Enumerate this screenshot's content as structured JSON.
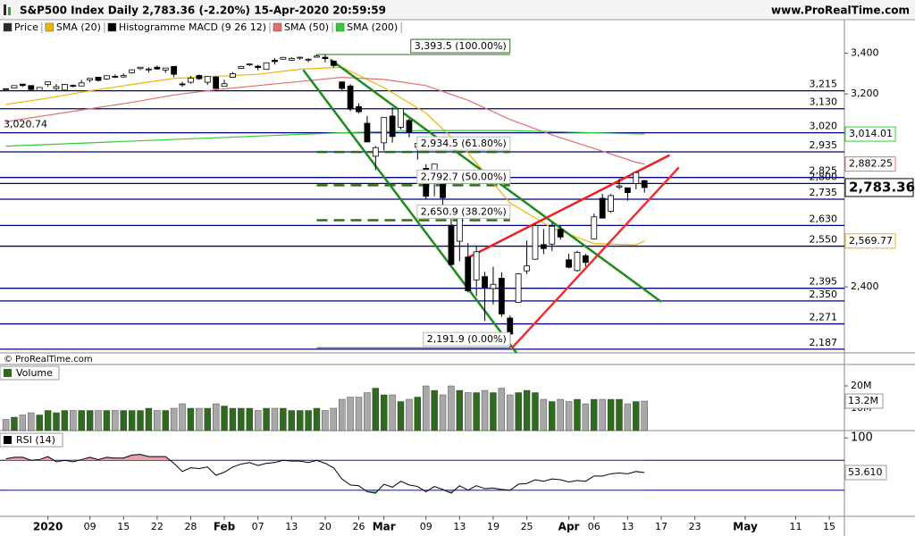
{
  "header": {
    "title": "S&P500 Index Daily 2,783.36 (-2.20%) 15-Apr-2020 20:59:59",
    "site": "www.ProRealTime.com"
  },
  "legend": [
    {
      "name": "Price",
      "color": "#2b2b2b"
    },
    {
      "name": "SMA (20)",
      "color": "#f0b400"
    },
    {
      "name": "Histogramme MACD (9 26 12)",
      "color": "#000000"
    },
    {
      "name": "SMA (50)",
      "color": "#e07070"
    },
    {
      "name": "SMA (200)",
      "color": "#33cc33"
    }
  ],
  "copyright": "© ProRealTime.com",
  "chart_data": [
    {
      "type": "candlestick",
      "xlim": [
        -0.7,
        99.8
      ],
      "ylim": [
        2175,
        3490
      ],
      "log_scale": true,
      "yticks": [
        {
          "value": 2400,
          "label": "2,400"
        },
        {
          "value": 3200,
          "label": "3,200"
        },
        {
          "value": 3400,
          "label": "3,400"
        }
      ],
      "up_color": "#ffffff",
      "down_color": "#000000",
      "close_label": "2,783.36",
      "open": [
        3225,
        3228,
        3247,
        3240,
        3216,
        3245,
        3226,
        3218,
        3241,
        3238,
        3267,
        3281,
        3272,
        3285,
        3282,
        3303,
        3323,
        3321,
        3330,
        3316,
        3334,
        3248,
        3256,
        3289,
        3256,
        3282,
        3236,
        3280,
        3324,
        3344,
        3335,
        3319,
        3365,
        3370,
        3365,
        3378,
        3370,
        3380,
        3380,
        3361,
        3258,
        3238,
        3140,
        3063,
        2916,
        2975,
        3096,
        3045,
        3076,
        2955,
        2864,
        2814,
        2826,
        2631,
        2569,
        2509,
        2425,
        2437,
        2394,
        2431,
        2291,
        2345,
        2458,
        2501,
        2556,
        2558,
        2615,
        2499,
        2459,
        2514,
        2578,
        2739,
        2686,
        2785,
        2782,
        2800,
        2812
      ],
      "high": [
        3226,
        3240,
        3248,
        3240,
        3232,
        3258,
        3247,
        3246,
        3245,
        3267,
        3275,
        3283,
        3288,
        3295,
        3299,
        3317,
        3330,
        3330,
        3338,
        3326,
        3334,
        3259,
        3286,
        3294,
        3286,
        3286,
        3268,
        3306,
        3337,
        3348,
        3342,
        3353,
        3375,
        3382,
        3381,
        3381,
        3375,
        3394,
        3393,
        3361,
        3259,
        3247,
        3156,
        3097,
        2960,
        3090,
        3137,
        3130,
        3083,
        2985,
        2882,
        2883,
        2826,
        2661,
        2711,
        2562,
        2553,
        2454,
        2473,
        2453,
        2300,
        2450,
        2572,
        2637,
        2616,
        2641,
        2632,
        2522,
        2533,
        2521,
        2677,
        2757,
        2756,
        2819,
        2783,
        2851,
        2815
      ],
      "low": [
        3223,
        3227,
        3234,
        3216,
        3216,
        3235,
        3214,
        3214,
        3232,
        3237,
        3256,
        3260,
        3268,
        3277,
        3279,
        3299,
        3316,
        3304,
        3318,
        3302,
        3281,
        3234,
        3249,
        3268,
        3243,
        3223,
        3236,
        3281,
        3323,
        3335,
        3315,
        3318,
        3343,
        3370,
        3363,
        3367,
        3355,
        3380,
        3354,
        3328,
        3214,
        3118,
        3108,
        2977,
        2856,
        2941,
        2976,
        3035,
        2999,
        2901,
        2734,
        2747,
        2707,
        2478,
        2493,
        2380,
        2367,
        2281,
        2338,
        2295,
        2192,
        2345,
        2446,
        2499,
        2520,
        2532,
        2575,
        2467,
        2455,
        2474,
        2578,
        2658,
        2680,
        2775,
        2729,
        2776,
        2762
      ],
      "close": [
        3223,
        3240,
        3240,
        3221,
        3231,
        3258,
        3235,
        3246,
        3237,
        3253,
        3275,
        3265,
        3288,
        3283,
        3289,
        3317,
        3330,
        3321,
        3321,
        3326,
        3295,
        3244,
        3276,
        3273,
        3284,
        3226,
        3249,
        3298,
        3334,
        3346,
        3328,
        3352,
        3358,
        3379,
        3374,
        3380,
        3370,
        3386,
        3373,
        3338,
        3226,
        3128,
        3116,
        2979,
        2954,
        3090,
        3003,
        3130,
        3024,
        2972,
        2747,
        2882,
        2741,
        2481,
        2711,
        2386,
        2529,
        2398,
        2409,
        2305,
        2237,
        2447,
        2476,
        2630,
        2541,
        2627,
        2585,
        2471,
        2527,
        2489,
        2664,
        2659,
        2750,
        2790,
        2762,
        2846,
        2783
      ],
      "series": [
        {
          "color": "#f0b400",
          "x": [
            0,
            5,
            10,
            15,
            20,
            25,
            30,
            35,
            40,
            45,
            50,
            55,
            60,
            65,
            70,
            75,
            76
          ],
          "values": [
            3150,
            3180,
            3215,
            3245,
            3275,
            3285,
            3295,
            3320,
            3330,
            3230,
            3110,
            2930,
            2720,
            2620,
            2560,
            2555,
            2569.77
          ],
          "last_label": "2,569.77"
        },
        {
          "color": "#e07070",
          "x": [
            0,
            5,
            10,
            15,
            20,
            25,
            30,
            35,
            40,
            45,
            50,
            55,
            60,
            65,
            70,
            75,
            76
          ],
          "values": [
            3070,
            3100,
            3130,
            3160,
            3195,
            3220,
            3240,
            3260,
            3280,
            3270,
            3240,
            3170,
            3080,
            3010,
            2950,
            2890,
            2882.25
          ],
          "last_label": "2,882.25"
        },
        {
          "color": "#33cc33",
          "x": [
            0,
            10,
            20,
            30,
            40,
            50,
            60,
            70,
            76
          ],
          "values": [
            2960,
            2975,
            2990,
            3005,
            3020,
            3030,
            3030,
            3020,
            3014.01
          ],
          "last_label": "3,014.01"
        }
      ],
      "level_color": "#000080",
      "levels": [
        {
          "value": 3215,
          "label": "3,215"
        },
        {
          "value": 3130,
          "label": "3,130"
        },
        {
          "value": 3020,
          "label": "3,020"
        },
        {
          "value": 2935,
          "label": "2,935"
        },
        {
          "value": 2825,
          "label": "2,825"
        },
        {
          "value": 2800,
          "label": "2,800"
        },
        {
          "value": 2735,
          "label": "2,735"
        },
        {
          "value": 2630,
          "label": "2,630"
        },
        {
          "value": 2550,
          "label": "2,550"
        },
        {
          "value": 2395,
          "label": "2,395"
        },
        {
          "value": 2350,
          "label": "2,350"
        },
        {
          "value": 2271,
          "label": "2,271"
        },
        {
          "value": 2187,
          "label": "2,187"
        }
      ],
      "annotations": [
        {
          "text": "3,020.74",
          "value": 3020.74
        }
      ],
      "fibonacci": {
        "color": "#2a6e1a",
        "from": 37,
        "to": 60,
        "levels": [
          {
            "value": 3393.5,
            "label": "3,393.5 (100.00%)"
          },
          {
            "value": 2934.5,
            "label": "2,934.5 (61.80%)"
          },
          {
            "value": 2792.7,
            "label": "2,792.7 (50.00%)"
          },
          {
            "value": 2650.9,
            "label": "2,650.9 (38.20%)"
          },
          {
            "value": 2191.9,
            "label": "2,191.9 (0.00%)"
          }
        ]
      },
      "trendlines": [
        {
          "color": "#1e8a1e",
          "points": [
            [
              35.4,
              3316
            ],
            [
              61.8,
              2138
            ]
          ]
        },
        {
          "color": "#1e8a1e",
          "points": [
            [
              38.6,
              3369
            ],
            [
              78.0,
              2347
            ]
          ]
        },
        {
          "color": "#ee2020",
          "points": [
            [
              55.0,
              2507
            ],
            [
              79.0,
              2921
            ]
          ]
        },
        {
          "color": "#ee3030",
          "points": [
            [
              60.2,
              2190
            ],
            [
              80.1,
              2868
            ]
          ]
        }
      ]
    },
    {
      "type": "bar",
      "title": "Volume",
      "xlim": [
        -0.7,
        99.8
      ],
      "ylim": [
        0,
        22.4
      ],
      "yticks": [
        {
          "value": 10,
          "label": "10M"
        },
        {
          "value": 20,
          "label": "20M"
        }
      ],
      "up_color": "#2f6b1e",
      "down_color": "#a8a8a8",
      "last_label": "13.2M",
      "values": [
        5,
        6,
        7,
        8,
        7,
        9,
        8,
        9,
        9,
        9,
        9,
        9,
        9,
        9,
        9,
        9,
        9,
        10,
        9,
        9,
        10,
        12,
        10,
        10,
        10,
        12,
        11,
        10,
        10,
        10,
        9,
        10,
        10,
        10,
        9,
        9,
        9,
        10,
        9,
        10,
        14,
        15,
        15,
        17,
        19,
        16,
        16,
        13,
        14,
        15,
        20,
        18,
        16,
        20,
        18,
        17,
        17,
        18,
        17,
        19,
        16,
        17,
        18,
        17,
        14,
        13,
        14,
        13,
        14,
        12,
        14,
        14,
        14,
        14,
        12,
        13,
        13.2
      ]
    },
    {
      "type": "line",
      "title": "RSI (14)",
      "xlim": [
        -0.7,
        99.8
      ],
      "ylim": [
        -5,
        105
      ],
      "yticks": [
        100
      ],
      "levels": [
        30,
        70
      ],
      "level_color": "#000080",
      "color": "#000000",
      "overbought_fill": "#e6a0ae",
      "oversold_fill": "#6fbf6f",
      "last_label": "53.610",
      "values": [
        72,
        74,
        74,
        70,
        71,
        75,
        68,
        70,
        68,
        71,
        74,
        71,
        74,
        73,
        73,
        77,
        78,
        75,
        75,
        75,
        66,
        55,
        60,
        59,
        61,
        50,
        54,
        61,
        65,
        67,
        63,
        66,
        67,
        70,
        69,
        69,
        67,
        70,
        66,
        60,
        45,
        37,
        36,
        28,
        26,
        38,
        34,
        42,
        37,
        35,
        28,
        35,
        31,
        26,
        36,
        30,
        36,
        32,
        33,
        31,
        30,
        38,
        39,
        44,
        42,
        45,
        44,
        41,
        43,
        42,
        49,
        49,
        52,
        53,
        52,
        55,
        53.61
      ],
      "xticks": [
        {
          "value": 5,
          "label": "2020"
        },
        {
          "value": 10,
          "label": "09"
        },
        {
          "value": 14,
          "label": "15"
        },
        {
          "value": 18,
          "label": "22"
        },
        {
          "value": 22,
          "label": "28"
        },
        {
          "value": 26,
          "label": "Feb"
        },
        {
          "value": 30,
          "label": "07"
        },
        {
          "value": 34,
          "label": "13"
        },
        {
          "value": 38,
          "label": "20"
        },
        {
          "value": 42,
          "label": "26"
        },
        {
          "value": 45,
          "label": "Mar"
        },
        {
          "value": 50,
          "label": "09"
        },
        {
          "value": 54,
          "label": "13"
        },
        {
          "value": 58,
          "label": "19"
        },
        {
          "value": 62,
          "label": "25"
        },
        {
          "value": 67,
          "label": "Apr"
        },
        {
          "value": 70,
          "label": "06"
        },
        {
          "value": 74,
          "label": "13"
        },
        {
          "value": 78,
          "label": "17"
        },
        {
          "value": 82,
          "label": "23"
        },
        {
          "value": 88,
          "label": "May"
        },
        {
          "value": 94,
          "label": "11"
        },
        {
          "value": 98,
          "label": "15"
        }
      ]
    }
  ]
}
